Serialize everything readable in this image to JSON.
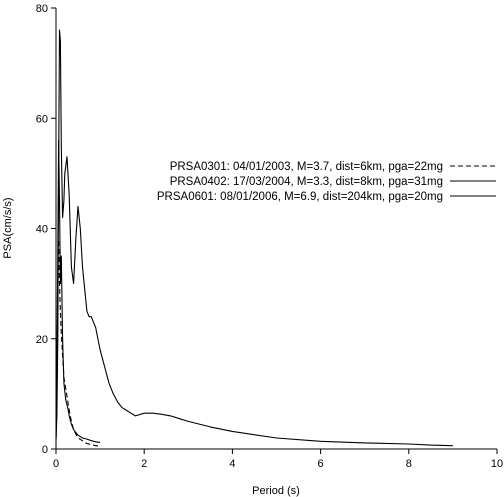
{
  "chart_data": {
    "type": "line",
    "title": "",
    "xlabel": "Period (s)",
    "ylabel": "PSA(cm/s/s)",
    "xlim": [
      0,
      10
    ],
    "ylim": [
      0,
      80
    ],
    "xticks": [
      0,
      2,
      4,
      6,
      8,
      10
    ],
    "yticks": [
      0,
      20,
      40,
      60,
      80
    ],
    "x_tick_labels": [
      "0",
      "2",
      "4",
      "6",
      "8",
      "10"
    ],
    "y_tick_labels": [
      "0",
      "20",
      "40",
      "60",
      "80"
    ],
    "grid": false,
    "legend_position": "center-right",
    "series": [
      {
        "name": "PRSA0301: 04/01/2003, M=3.7, dist=6km, pga=22mg",
        "style": "dashed",
        "color": "#000000",
        "x": [
          0,
          0.02,
          0.04,
          0.06,
          0.08,
          0.1,
          0.12,
          0.15,
          0.18,
          0.22,
          0.26,
          0.3,
          0.35,
          0.4,
          0.5,
          0.6,
          0.7,
          0.8,
          0.9,
          1.0
        ],
        "y": [
          2,
          10,
          28,
          38,
          30,
          25,
          21,
          17,
          13,
          11,
          9,
          7,
          5,
          3.5,
          2,
          1.5,
          1,
          0.8,
          0.6,
          0.5
        ]
      },
      {
        "name": "PRSA0402: 17/03/2004, M=3.3, dist=8km, pga=31mg",
        "style": "solid",
        "color": "#000000",
        "x": [
          0,
          0.02,
          0.04,
          0.06,
          0.08,
          0.1,
          0.12,
          0.15,
          0.18,
          0.22,
          0.25,
          0.28,
          0.3,
          0.35,
          0.4,
          0.5,
          0.6,
          0.7,
          0.8,
          0.9,
          1.0
        ],
        "y": [
          2,
          15,
          35,
          56,
          45,
          30,
          35,
          20,
          12,
          9,
          8,
          7,
          6,
          4.5,
          3.5,
          2.5,
          2,
          1.8,
          1.5,
          1.3,
          1.2
        ]
      },
      {
        "name": "PRSA0601: 08/01/2006, M=6.9, dist=204km, pga=20mg",
        "style": "solid",
        "color": "#000000",
        "x": [
          0,
          0.02,
          0.04,
          0.06,
          0.08,
          0.1,
          0.12,
          0.15,
          0.18,
          0.2,
          0.25,
          0.3,
          0.35,
          0.4,
          0.45,
          0.5,
          0.55,
          0.6,
          0.65,
          0.7,
          0.75,
          0.8,
          0.85,
          0.9,
          0.95,
          1.0,
          1.1,
          1.2,
          1.3,
          1.4,
          1.5,
          1.6,
          1.7,
          1.8,
          2.0,
          2.2,
          2.4,
          2.6,
          2.8,
          3.0,
          3.5,
          4.0,
          5.0,
          6.0,
          7.0,
          8.0,
          8.5,
          9.0
        ],
        "y": [
          1.5,
          6,
          20,
          50,
          76,
          74,
          55,
          42,
          45,
          50,
          53,
          46,
          33,
          30,
          38,
          44,
          40,
          33,
          29,
          25,
          24,
          24,
          23,
          22,
          20,
          18,
          15,
          12,
          10,
          8.5,
          7.5,
          7,
          6.5,
          6,
          6.5,
          6.5,
          6.3,
          6,
          5.5,
          5,
          4,
          3.2,
          2,
          1.4,
          1.1,
          0.9,
          0.7,
          0.6
        ]
      }
    ]
  }
}
